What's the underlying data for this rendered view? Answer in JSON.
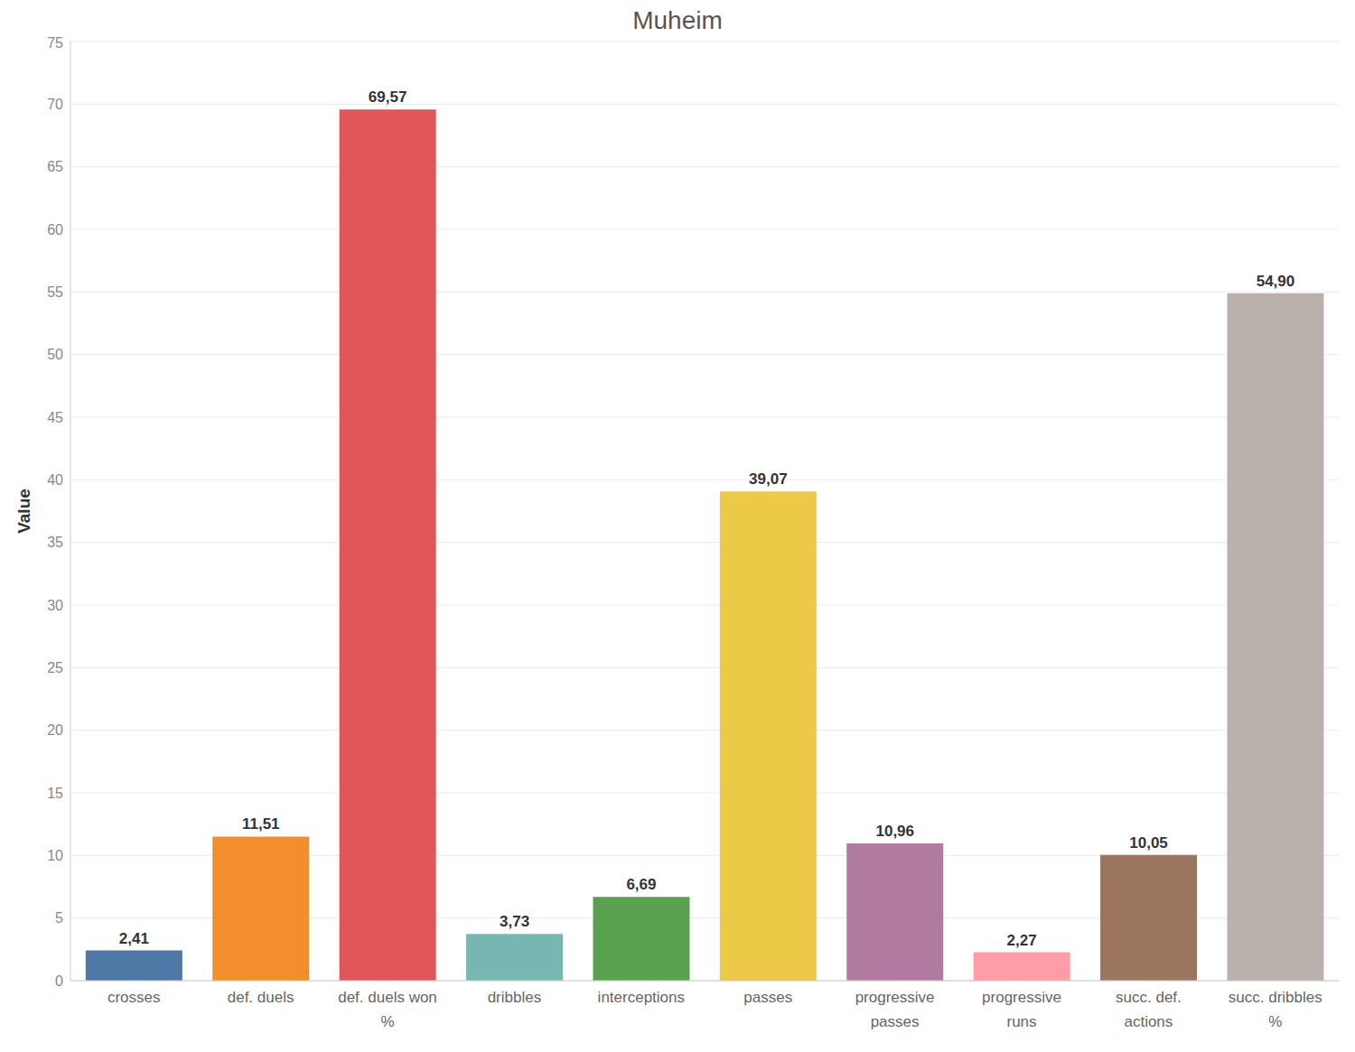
{
  "chart_data": {
    "type": "bar",
    "title": "Muheim",
    "y_label": "Value",
    "categories": [
      "crosses",
      "def. duels",
      "def. duels won %",
      "dribbles",
      "interceptions",
      "passes",
      "progressive passes",
      "progressive runs",
      "succ. def. actions",
      "succ. dribbles %"
    ],
    "values": [
      2.41,
      11.51,
      69.57,
      3.73,
      6.69,
      39.07,
      10.96,
      2.27,
      10.05,
      54.9
    ],
    "value_labels": [
      "2,41",
      "11,51",
      "69,57",
      "3,73",
      "6,69",
      "39,07",
      "10,96",
      "2,27",
      "10,05",
      "54,90"
    ],
    "colors": [
      "#4e79a7",
      "#f28e2b",
      "#e15759",
      "#76b7b2",
      "#59a14f",
      "#edc948",
      "#b07aa1",
      "#ff9da7",
      "#9c755f",
      "#bab0ac"
    ],
    "ylim": [
      0,
      75
    ],
    "yticks": [
      0,
      5,
      10,
      15,
      20,
      25,
      30,
      35,
      40,
      45,
      50,
      55,
      60,
      65,
      70,
      75
    ],
    "grid": true,
    "data_labels": true
  }
}
